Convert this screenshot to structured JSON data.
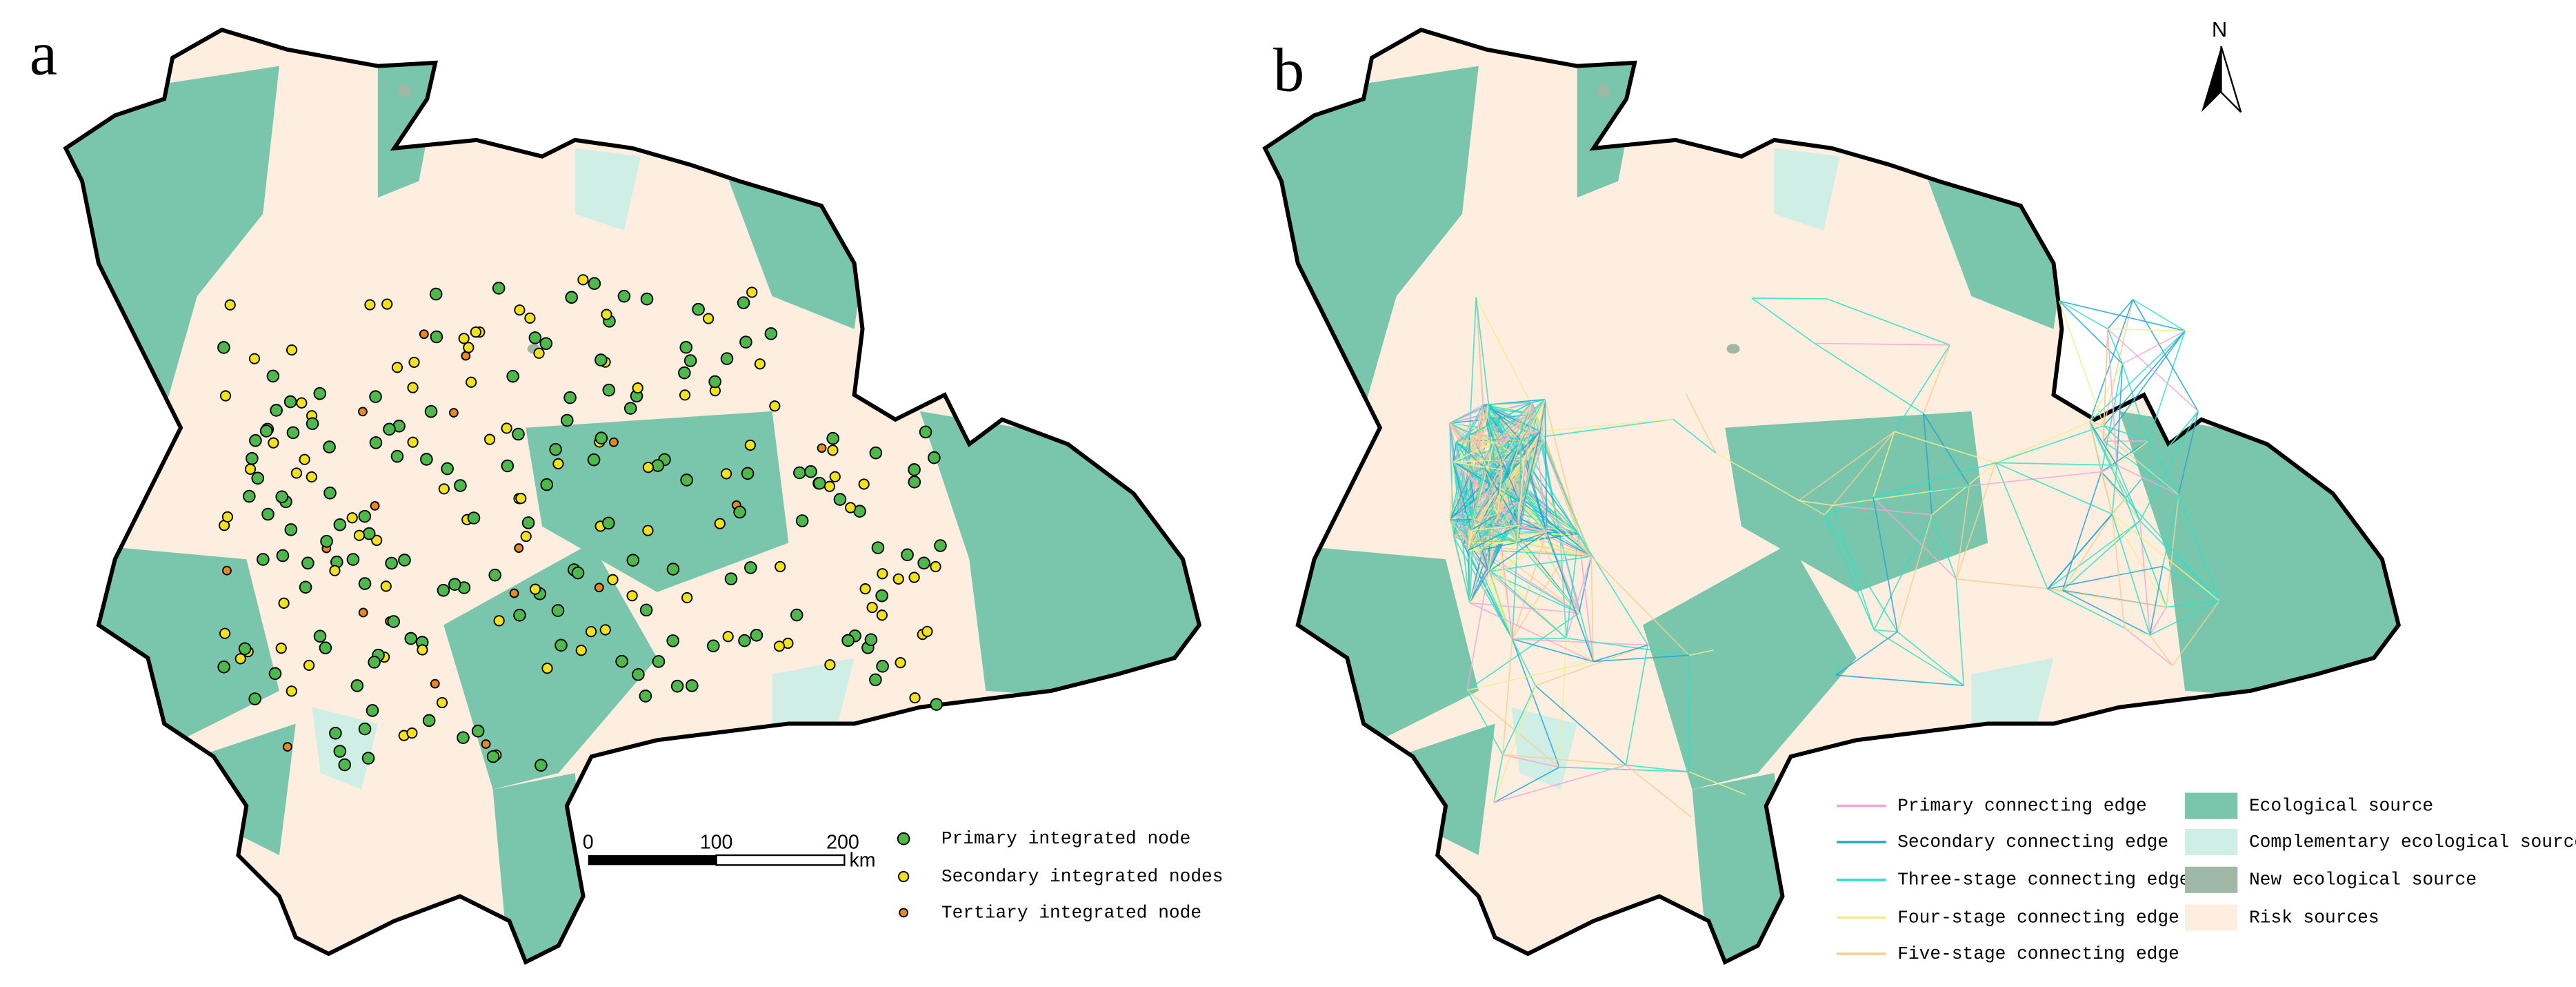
{
  "panels": [
    {
      "label": "a",
      "legend": [
        "Primary integrated node",
        "Secondary integrated nodes",
        "Tertiary integrated node"
      ],
      "scale_bar": {
        "ticks": [
          "0",
          "100",
          "200"
        ],
        "unit": "km"
      }
    },
    {
      "label": "b",
      "north": "N",
      "legend_edges": [
        "Primary connecting edge",
        "Secondary connecting edge",
        "Three-stage connecting edge",
        "Four-stage connecting edge",
        "Five-stage connecting edge"
      ],
      "legend_areas": [
        "Ecological source",
        "Complementary ecological source",
        "New ecological source",
        "Risk sources"
      ]
    }
  ]
}
